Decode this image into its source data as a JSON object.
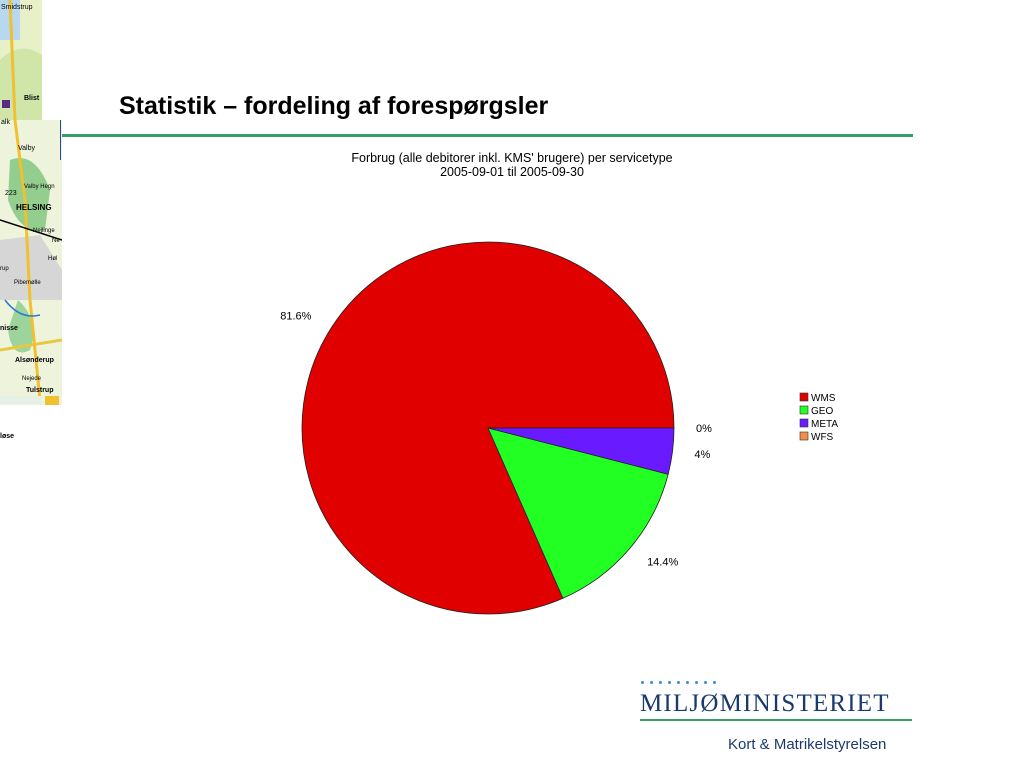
{
  "slide": {
    "title": "Statistik – fordeling af forespørgsler",
    "map_labels": [
      "Smidstrup",
      "Blist",
      "alk",
      "Valby",
      "223",
      "Valby Hegn",
      "HELSING",
      "Nejlinge",
      "Ne",
      "Høl",
      "rup",
      "Pibemølle",
      "nisse",
      "Alsønderup",
      "Nejede",
      "Tulstrup",
      "løse"
    ]
  },
  "chart_data": {
    "type": "pie",
    "title_lines": [
      "Forbrug (alle debitorer inkl. KMS' brugere) per servicetype",
      "2005-09-01 til 2005-09-30"
    ],
    "slices": [
      {
        "name": "WMS",
        "value": 81.6,
        "label": "81.6%",
        "color": "#e00000"
      },
      {
        "name": "GEO",
        "value": 14.4,
        "label": "14.4%",
        "color": "#22ff22"
      },
      {
        "name": "META",
        "value": 4,
        "label": "4%",
        "color": "#6a1aff"
      },
      {
        "name": "WFS",
        "value": 0,
        "label": "0%",
        "color": "#f0904a"
      }
    ],
    "legend_position": "right"
  },
  "logo": {
    "name": "MILJØMINISTERIET",
    "agency": "Kort & Matrikelstyrelsen",
    "color": "#1a3a6e",
    "dot_color": "#3f8fd0"
  },
  "colors": {
    "accent_rule": "#3a9a6a"
  }
}
